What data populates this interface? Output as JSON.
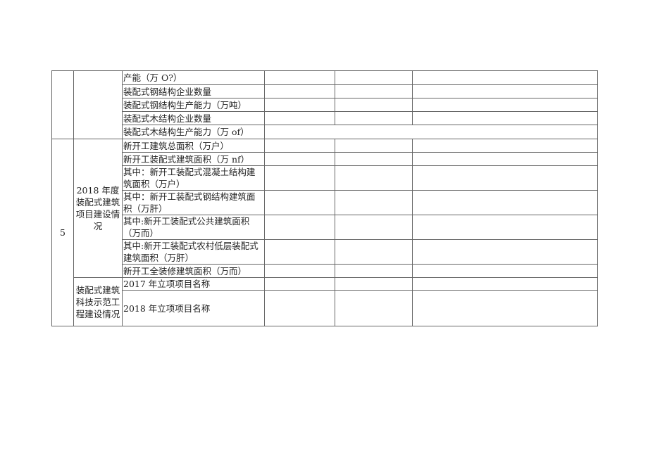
{
  "group1": {
    "rows": [
      "产能（万 O?）",
      "装配式钢结构企业数量",
      "装配式钢结构生产能力（万吨）",
      "装配式木结构企业数量",
      "装配式木结构生产能力（万 of）"
    ]
  },
  "group2": {
    "number": "5",
    "section_a": {
      "title": "2018 年度装配式建筑项目建设情况",
      "rows": [
        "新开工建筑总面积（万户）",
        "新开工装配式建筑面积（万 nf）",
        "其中：新开工装配式混凝土结构建筑面积（万户）",
        "其中：新开工装配式钢结构建筑面积（万肝）",
        "其中:新开工装配式公共建筑面积（万而）",
        "其中:新开工装配式农村低层装配式建筑面积（万肝）",
        "新开工全装修建筑面积（万而）"
      ]
    },
    "section_b": {
      "title": "装配式建筑科技示范工程建设情况",
      "rows": [
        "2017 年立项项目名称",
        "2018 年立项项目名称"
      ]
    }
  }
}
